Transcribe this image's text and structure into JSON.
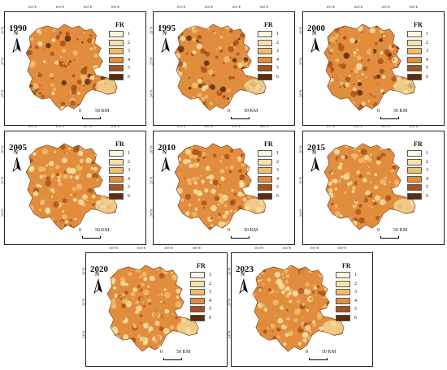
{
  "legend_title": "FR",
  "legend_classes": [
    "1",
    "2",
    "3",
    "4",
    "5",
    "6"
  ],
  "legend_colors": [
    "#fdf7e1",
    "#f7e2a6",
    "#f0be6a",
    "#e28d3e",
    "#a9521b",
    "#5c2c0c"
  ],
  "north_label": "N",
  "scale": {
    "zero": "0",
    "label": "50 KM"
  },
  "longitude_ticks": [
    "103°E",
    "104°E",
    "105°E",
    "106°E"
  ],
  "latitude_ticks": [
    "26°N",
    "25°N",
    "24°N"
  ],
  "panels": [
    {
      "year": "1990"
    },
    {
      "year": "1995"
    },
    {
      "year": "2000"
    },
    {
      "year": "2005"
    },
    {
      "year": "2010"
    },
    {
      "year": "2015"
    },
    {
      "year": "2020"
    },
    {
      "year": "2023"
    }
  ]
}
